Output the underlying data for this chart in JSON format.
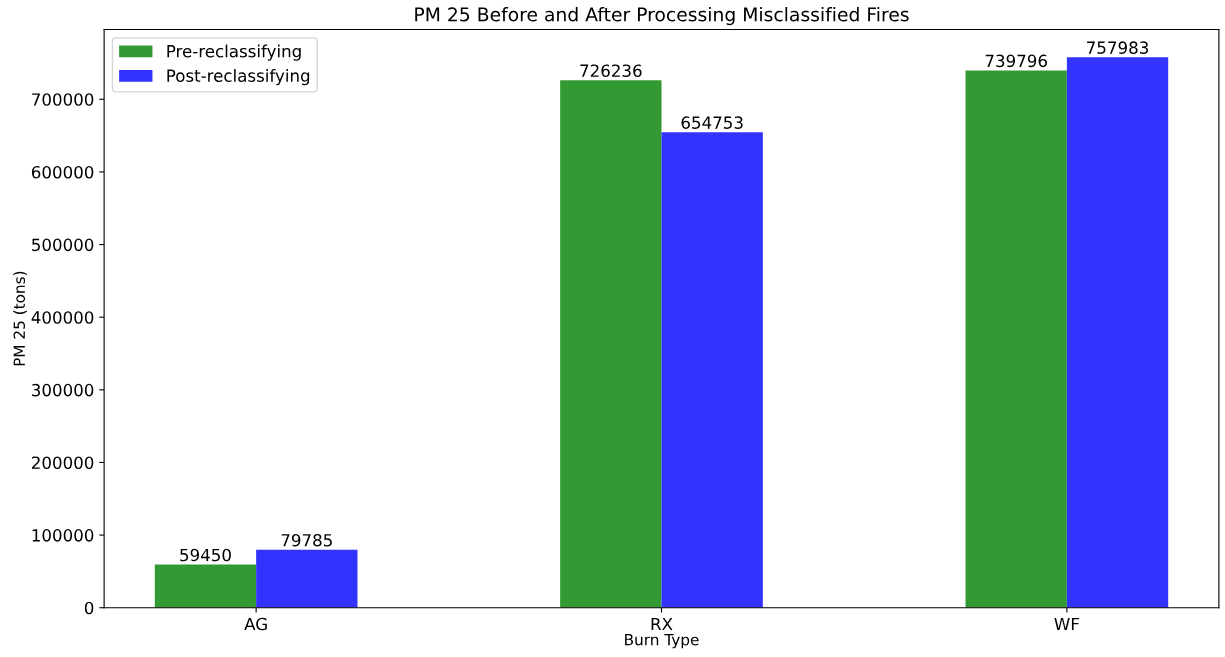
{
  "chart_data": {
    "type": "bar",
    "title": "PM 25 Before and After Processing Misclassified Fires",
    "xlabel": "Burn Type",
    "ylabel": "PM 25 (tons)",
    "categories": [
      "AG",
      "RX",
      "WF"
    ],
    "series": [
      {
        "name": "Pre-reclassifying",
        "color": "#339933",
        "values": [
          59450,
          726236,
          739796
        ]
      },
      {
        "name": "Post-reclassifying",
        "color": "#3333ff",
        "values": [
          79785,
          654753,
          757983
        ]
      }
    ],
    "ylim": [
      0,
      796000
    ],
    "yticks": [
      0,
      100000,
      200000,
      300000,
      400000,
      500000,
      600000,
      700000
    ],
    "data_labels": true,
    "legend": "top left",
    "grid": false
  }
}
